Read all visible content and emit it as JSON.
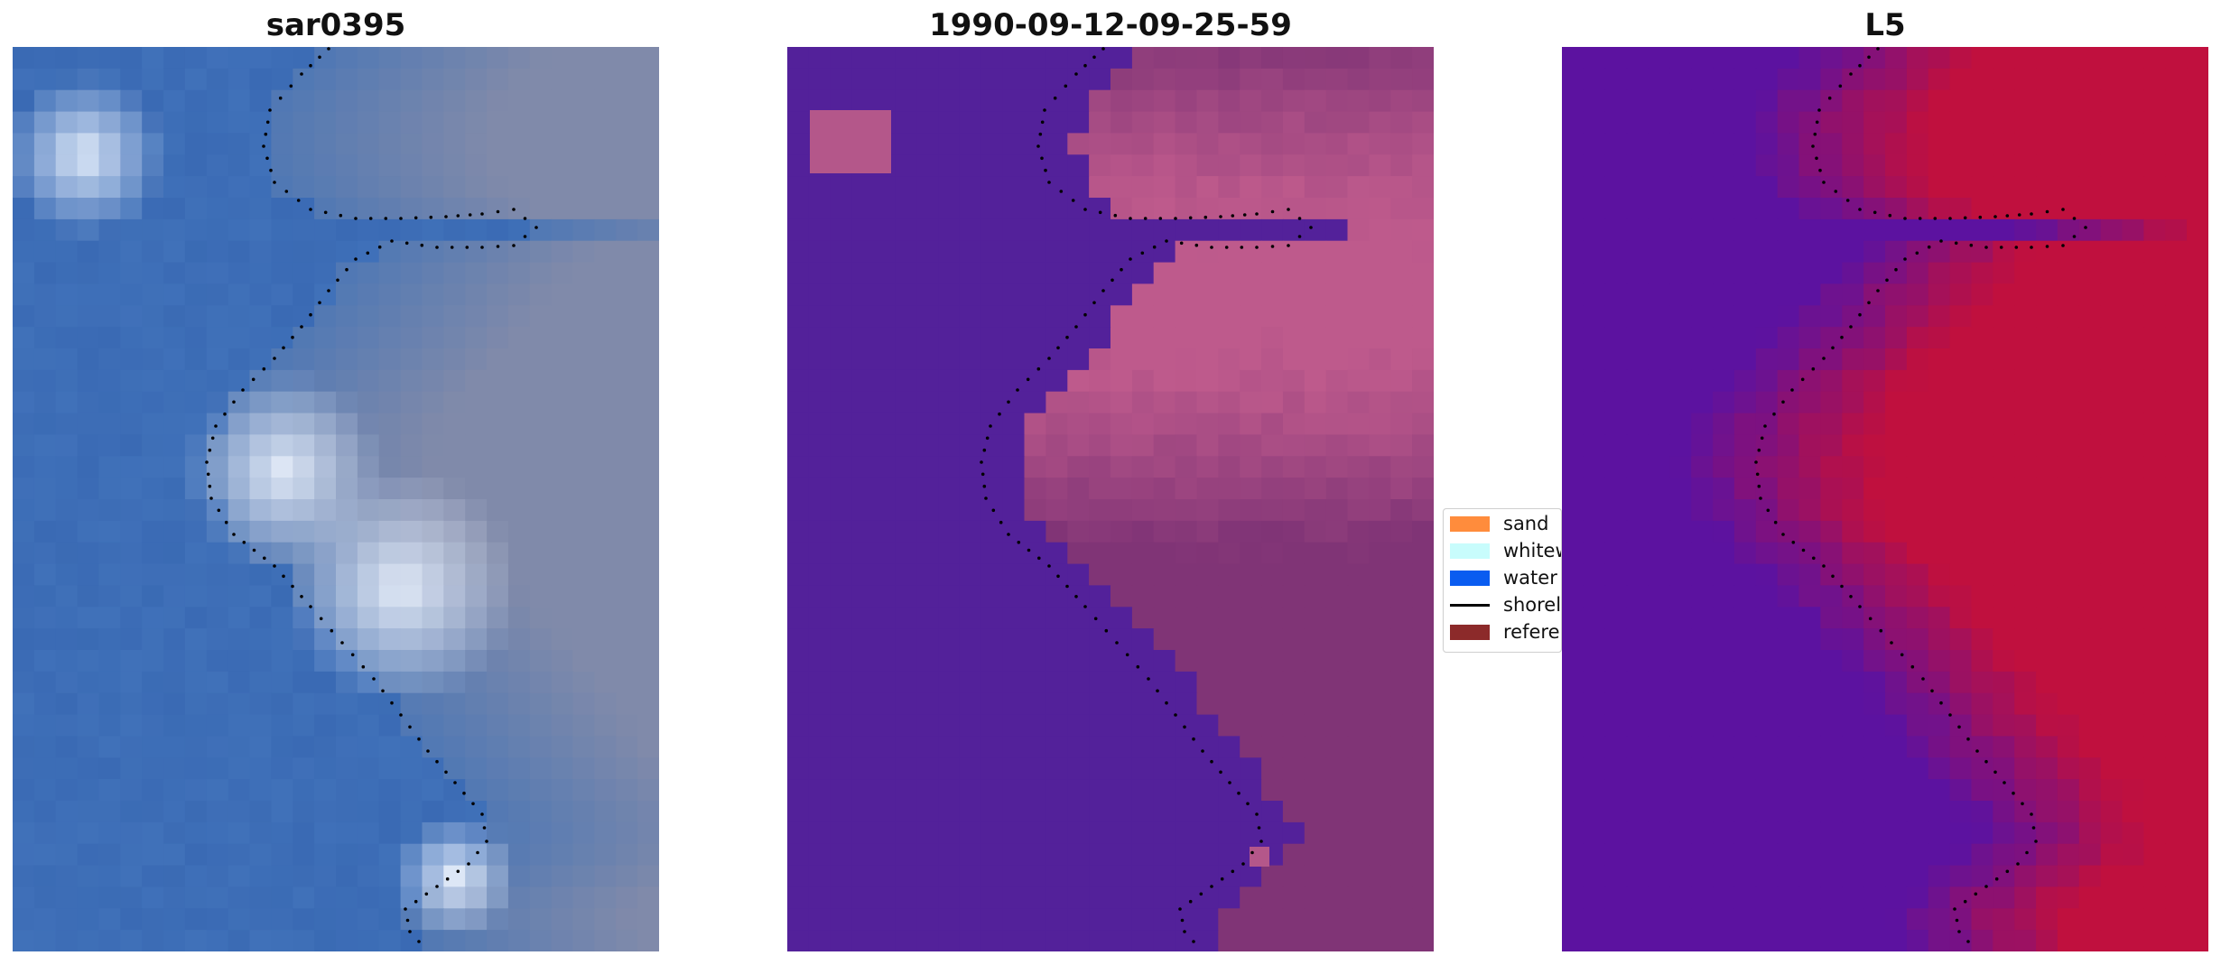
{
  "panels": [
    {
      "title": "sar0395",
      "content": "sar-rgb-image"
    },
    {
      "title": "1990-09-12-09-25-59",
      "content": "classified-image"
    },
    {
      "title": "L5",
      "content": "index-image"
    }
  ],
  "legend": {
    "items": [
      {
        "label": "sand",
        "color": "#ff8c3c",
        "kind": "patch"
      },
      {
        "label": "whitew",
        "color": "#c8fcfc",
        "kind": "patch"
      },
      {
        "label": "water",
        "color": "#0a5cf0",
        "kind": "patch"
      },
      {
        "label": "shorel",
        "color": "#000000",
        "kind": "line"
      },
      {
        "label": "referer",
        "color": "#8c2a2a",
        "kind": "patch"
      }
    ]
  },
  "colors": {
    "water_class": "#53219a",
    "land_class": "#b4578a",
    "sar_water": "#3a6ab4",
    "sar_white": "#f0f6ff",
    "index_low": "#5a0fa0",
    "index_high": "#c0103e"
  }
}
